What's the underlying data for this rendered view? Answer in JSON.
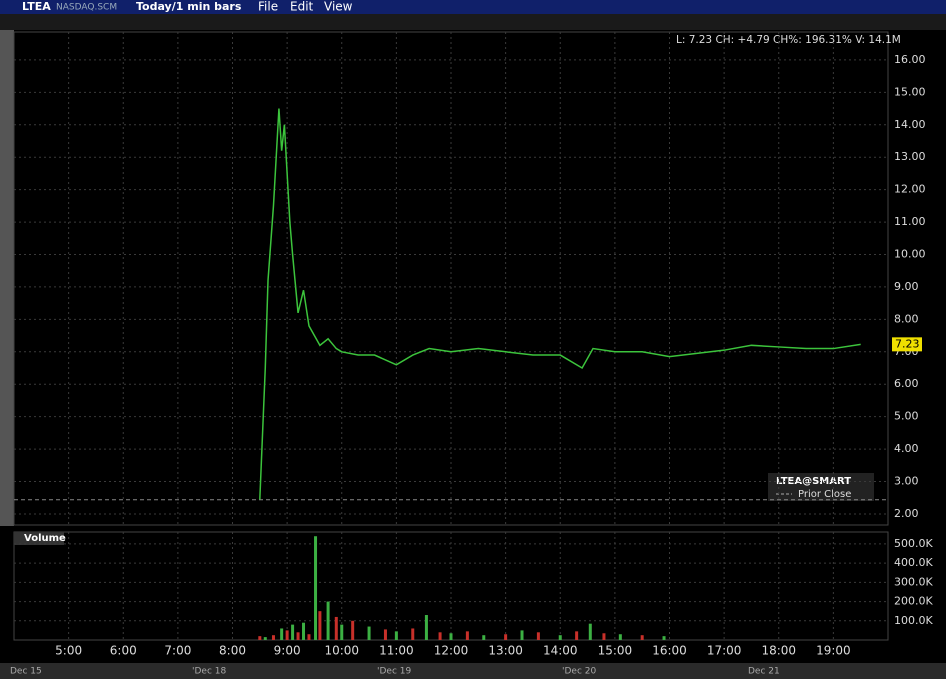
{
  "toolbar": {
    "symbol": "LTEA",
    "exchange": "NASDAQ.SCM",
    "period": "Today/1 min bars",
    "menus": [
      "File",
      "Edit",
      "View"
    ]
  },
  "dates": [
    "Dec 15",
    "'Dec 18",
    "'Dec 19",
    "'Dec 20",
    "Dec 21"
  ],
  "chart_data": [
    {
      "type": "line",
      "info": "L: 7.23 CH: +4.79 CH%: 196.31% V: 14.1M",
      "last": 7.23,
      "prior_close": {
        "label": "Prior Close",
        "value": 2.44
      },
      "xlim": [
        4,
        20
      ],
      "ylim": [
        1.66,
        16.86
      ],
      "grid": true,
      "xticks": [
        {
          "value": 5,
          "label": "5:00"
        },
        {
          "value": 6,
          "label": "6:00"
        },
        {
          "value": 7,
          "label": "7:00"
        },
        {
          "value": 8,
          "label": "8:00"
        },
        {
          "value": 9,
          "label": "9:00"
        },
        {
          "value": 10,
          "label": "10:00"
        },
        {
          "value": 11,
          "label": "11:00"
        },
        {
          "value": 12,
          "label": "12:00"
        },
        {
          "value": 13,
          "label": "13:00"
        },
        {
          "value": 14,
          "label": "14:00"
        },
        {
          "value": 15,
          "label": "15:00"
        },
        {
          "value": 16,
          "label": "16:00"
        },
        {
          "value": 17,
          "label": "17:00"
        },
        {
          "value": 18,
          "label": "18:00"
        },
        {
          "value": 19,
          "label": "19:00"
        }
      ],
      "yticks": [
        {
          "value": 2,
          "label": "2.00"
        },
        {
          "value": 3,
          "label": "3.00"
        },
        {
          "value": 4,
          "label": "4.00"
        },
        {
          "value": 5,
          "label": "5.00"
        },
        {
          "value": 6,
          "label": "6.00"
        },
        {
          "value": 7,
          "label": "7.00"
        },
        {
          "value": 8,
          "label": "8.00"
        },
        {
          "value": 9,
          "label": "9.00"
        },
        {
          "value": 10,
          "label": "10.00"
        },
        {
          "value": 11,
          "label": "11.00"
        },
        {
          "value": 12,
          "label": "12.00"
        },
        {
          "value": 13,
          "label": "13.00"
        },
        {
          "value": 14,
          "label": "14.00"
        },
        {
          "value": 15,
          "label": "15.00"
        },
        {
          "value": 16,
          "label": "16.00"
        }
      ],
      "series": [
        {
          "name": "LTEA@SMART",
          "color": "#3cc43c",
          "x": [
            8.5,
            8.6,
            8.65,
            8.75,
            8.85,
            8.9,
            8.95,
            9.0,
            9.05,
            9.1,
            9.2,
            9.3,
            9.4,
            9.5,
            9.6,
            9.75,
            9.9,
            10.0,
            10.3,
            10.6,
            11.0,
            11.3,
            11.6,
            12.0,
            12.5,
            13.0,
            13.5,
            14.0,
            14.4,
            14.6,
            15.0,
            15.5,
            16.0,
            16.5,
            17.0,
            17.5,
            18.0,
            18.5,
            19.0,
            19.5
          ],
          "values": [
            2.45,
            6.5,
            9.2,
            11.5,
            14.5,
            13.2,
            14.0,
            12.5,
            11.0,
            10.0,
            8.2,
            8.9,
            7.8,
            7.5,
            7.2,
            7.4,
            7.1,
            7.0,
            6.9,
            6.9,
            6.6,
            6.9,
            7.1,
            7.0,
            7.1,
            7.0,
            6.9,
            6.9,
            6.5,
            7.1,
            7.0,
            7.0,
            6.85,
            6.95,
            7.05,
            7.2,
            7.15,
            7.1,
            7.1,
            7.23
          ]
        }
      ]
    },
    {
      "type": "bar",
      "title": "Volume",
      "xlim": [
        4,
        20
      ],
      "ylim": [
        0,
        562000
      ],
      "color": "#c8302a",
      "yticks": [
        {
          "value": 100000,
          "label": "100.0K"
        },
        {
          "value": 200000,
          "label": "200.0K"
        },
        {
          "value": 300000,
          "label": "300.0K"
        },
        {
          "value": 400000,
          "label": "400.0K"
        },
        {
          "value": 500000,
          "label": "500.0K"
        }
      ],
      "x": [
        8.5,
        8.6,
        8.75,
        8.9,
        9.0,
        9.1,
        9.2,
        9.3,
        9.4,
        9.52,
        9.6,
        9.75,
        9.9,
        10.0,
        10.2,
        10.5,
        10.8,
        11.0,
        11.3,
        11.55,
        11.8,
        12.0,
        12.3,
        12.6,
        13.0,
        13.3,
        13.6,
        14.0,
        14.3,
        14.55,
        14.8,
        15.1,
        15.5,
        15.9
      ],
      "values": [
        20000,
        15000,
        25000,
        60000,
        50000,
        80000,
        40000,
        90000,
        30000,
        540000,
        150000,
        200000,
        120000,
        80000,
        100000,
        70000,
        55000,
        45000,
        60000,
        130000,
        40000,
        35000,
        45000,
        25000,
        30000,
        50000,
        40000,
        25000,
        45000,
        85000,
        35000,
        30000,
        25000,
        20000
      ]
    }
  ]
}
